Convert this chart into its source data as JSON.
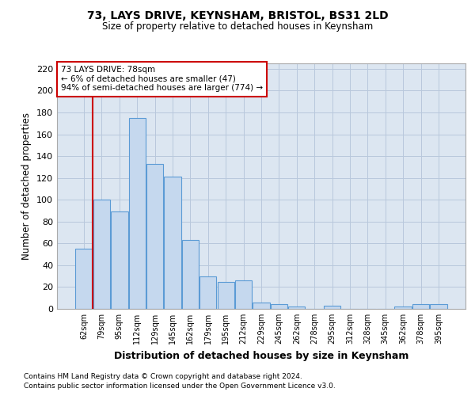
{
  "title1": "73, LAYS DRIVE, KEYNSHAM, BRISTOL, BS31 2LD",
  "title2": "Size of property relative to detached houses in Keynsham",
  "xlabel": "Distribution of detached houses by size in Keynsham",
  "ylabel": "Number of detached properties",
  "footnote1": "Contains HM Land Registry data © Crown copyright and database right 2024.",
  "footnote2": "Contains public sector information licensed under the Open Government Licence v3.0.",
  "categories": [
    "62sqm",
    "79sqm",
    "95sqm",
    "112sqm",
    "129sqm",
    "145sqm",
    "162sqm",
    "179sqm",
    "195sqm",
    "212sqm",
    "229sqm",
    "245sqm",
    "262sqm",
    "278sqm",
    "295sqm",
    "312sqm",
    "328sqm",
    "345sqm",
    "362sqm",
    "378sqm",
    "395sqm"
  ],
  "values": [
    55,
    100,
    89,
    175,
    133,
    121,
    63,
    30,
    25,
    26,
    6,
    4,
    2,
    0,
    3,
    0,
    0,
    0,
    2,
    4,
    4
  ],
  "bar_color": "#c5d8ee",
  "bar_edge_color": "#5b9bd5",
  "plot_bg_color": "#dce6f1",
  "background_color": "#ffffff",
  "grid_color": "#b8c8dc",
  "annotation_box_text_line1": "73 LAYS DRIVE: 78sqm",
  "annotation_box_text_line2": "← 6% of detached houses are smaller (47)",
  "annotation_box_text_line3": "94% of semi-detached houses are larger (774) →",
  "annotation_box_color": "#ffffff",
  "annotation_box_edge_color": "#cc0000",
  "annotation_line_color": "#cc0000",
  "ylim": [
    0,
    225
  ],
  "yticks": [
    0,
    20,
    40,
    60,
    80,
    100,
    120,
    140,
    160,
    180,
    200,
    220
  ]
}
